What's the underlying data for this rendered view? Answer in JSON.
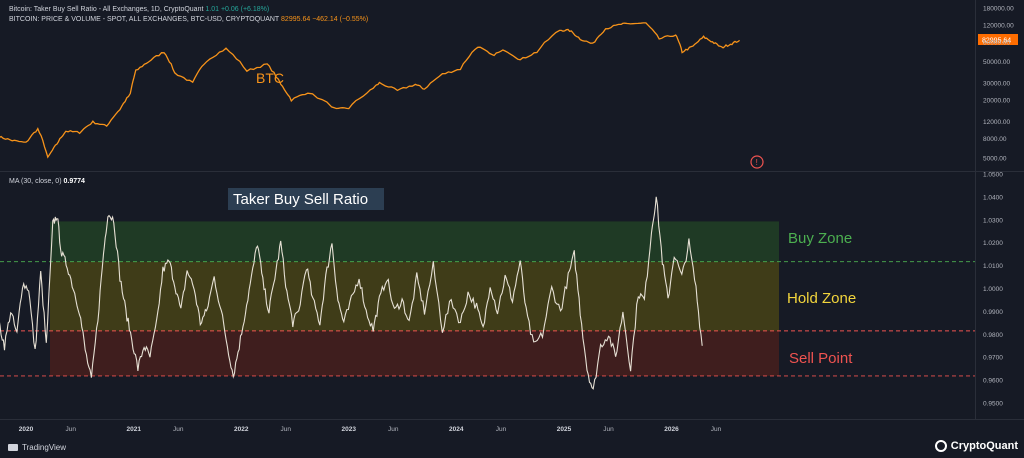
{
  "legend": {
    "line1_label": "Bitcoin: Taker Buy Sell Ratio - All Exchanges, 1D, CryptoQuant",
    "line1_value": "1.01",
    "line1_change": "+0.06 (+6.18%)",
    "line2_label": "BITCOIN: PRICE & VOLUME - SPOT, ALL EXCHANGES, BTC-USD, CRYPTOQUANT",
    "line2_value": "82995.64",
    "line2_change": "−462.14 (−0.55%)",
    "ma_label": "MA (30, close, 0)",
    "ma_value": "0.9774"
  },
  "branding": {
    "left": "TradingView",
    "right": "CryptoQuant"
  },
  "colors": {
    "background": "#161a25",
    "price_line": "#f7931a",
    "ratio_line": "#e6e0d4",
    "buy_zone": "#1f3a25",
    "hold_zone": "#3f3c18",
    "sell_zone": "#3f1e1e",
    "buy_text": "#4caf50",
    "hold_text": "#f2d53c",
    "sell_text": "#ef5350",
    "badge": "#ff6d00"
  },
  "chart_data": [
    {
      "type": "line",
      "series_label": "BTC",
      "price_badge": "82995.64",
      "yscale": "log",
      "ylim": [
        4000,
        180000
      ],
      "yticks": [
        "180000.00",
        "120000.00",
        "80000.00",
        "50000.00",
        "30000.00",
        "20000.00",
        "12000.00",
        "8000.00",
        "5000.00"
      ],
      "ytick_values": [
        180000,
        120000,
        80000,
        50000,
        30000,
        20000,
        12000,
        8000,
        5000
      ],
      "series": [
        {
          "name": "BTC",
          "points": [
            [
              "2019-10-01",
              8300
            ],
            [
              "2019-11-15",
              7600
            ],
            [
              "2020-01-01",
              7200
            ],
            [
              "2020-02-10",
              10000
            ],
            [
              "2020-03-15",
              5000
            ],
            [
              "2020-04-15",
              7000
            ],
            [
              "2020-05-15",
              9500
            ],
            [
              "2020-07-01",
              9200
            ],
            [
              "2020-08-15",
              11800
            ],
            [
              "2020-10-01",
              10700
            ],
            [
              "2020-11-15",
              16000
            ],
            [
              "2020-12-20",
              23000
            ],
            [
              "2021-01-08",
              40000
            ],
            [
              "2021-02-20",
              50000
            ],
            [
              "2021-04-14",
              63000
            ],
            [
              "2021-05-20",
              38000
            ],
            [
              "2021-07-20",
              30000
            ],
            [
              "2021-09-05",
              51000
            ],
            [
              "2021-11-10",
              68000
            ],
            [
              "2022-01-20",
              40000
            ],
            [
              "2022-03-30",
              47000
            ],
            [
              "2022-05-15",
              29000
            ],
            [
              "2022-06-20",
              20000
            ],
            [
              "2022-08-15",
              24000
            ],
            [
              "2022-11-20",
              16000
            ],
            [
              "2023-01-01",
              16500
            ],
            [
              "2023-03-15",
              25000
            ],
            [
              "2023-04-15",
              30000
            ],
            [
              "2023-06-15",
              25000
            ],
            [
              "2023-08-15",
              29000
            ],
            [
              "2023-09-15",
              26000
            ],
            [
              "2023-11-15",
              37000
            ],
            [
              "2024-01-15",
              42000
            ],
            [
              "2024-03-14",
              72000
            ],
            [
              "2024-05-01",
              58000
            ],
            [
              "2024-06-15",
              66000
            ],
            [
              "2024-08-05",
              52000
            ],
            [
              "2024-10-01",
              63000
            ],
            [
              "2024-12-17",
              106000
            ],
            [
              "2025-01-20",
              105000
            ],
            [
              "2025-02-25",
              86000
            ],
            [
              "2025-04-08",
              76000
            ],
            [
              "2025-05-22",
              110000
            ],
            [
              "2025-07-14",
              122000
            ],
            [
              "2025-08-14",
              124000
            ],
            [
              "2025-10-06",
              125000
            ],
            [
              "2025-11-20",
              86000
            ],
            [
              "2026-01-15",
              95000
            ],
            [
              "2026-02-06",
              63000
            ],
            [
              "2026-03-15",
              72000
            ],
            [
              "2026-04-20",
              90000
            ],
            [
              "2026-05-20",
              80000
            ],
            [
              "2026-06-20",
              70000
            ],
            [
              "2026-07-20",
              76000
            ],
            [
              "2026-08-20",
              83000
            ]
          ]
        }
      ]
    },
    {
      "type": "line",
      "title": "Taker Buy Sell Ratio",
      "ylim": [
        0.944,
        1.05
      ],
      "yticks": [
        "1.0500",
        "1.0400",
        "1.0300",
        "1.0200",
        "1.0100",
        "1.0000",
        "0.9900",
        "0.9800",
        "0.9700",
        "0.9600",
        "0.9500"
      ],
      "ytick_values": [
        1.05,
        1.04,
        1.03,
        1.02,
        1.01,
        1.0,
        0.99,
        0.98,
        0.97,
        0.96,
        0.95
      ],
      "zones": [
        {
          "name": "Buy Zone",
          "from": 1.0117,
          "to": 1.0293
        },
        {
          "name": "Hold Zone",
          "from": 0.9815,
          "to": 1.0117
        },
        {
          "name": "Sell Point",
          "from": 0.9618,
          "to": 0.9815
        }
      ],
      "reference_lines": [
        1.0117,
        0.9815,
        0.9618
      ],
      "x_labels": [
        "2020",
        "Jun",
        "2021",
        "Jun",
        "2022",
        "Jun",
        "2023",
        "Jun",
        "2024",
        "Jun",
        "2025",
        "Jun",
        "2026",
        "Jun"
      ],
      "x_label_dates": [
        "2020-01-01",
        "2020-06-01",
        "2021-01-01",
        "2021-06-01",
        "2022-01-01",
        "2022-06-01",
        "2023-01-01",
        "2023-06-01",
        "2024-01-01",
        "2024-06-01",
        "2025-01-01",
        "2025-06-01",
        "2026-01-01",
        "2026-06-01"
      ],
      "series": [
        {
          "name": "MA (30, close, 0)",
          "points": [
            [
              "2019-10-01",
              0.985
            ],
            [
              "2019-10-20",
              0.975
            ],
            [
              "2019-11-10",
              0.99
            ],
            [
              "2019-12-01",
              0.98
            ],
            [
              "2019-12-20",
              1.002
            ],
            [
              "2020-01-10",
              1.0
            ],
            [
              "2020-02-01",
              0.972
            ],
            [
              "2020-02-20",
              1.007
            ],
            [
              "2020-03-10",
              0.975
            ],
            [
              "2020-04-01",
              1.028
            ],
            [
              "2020-04-15",
              1.032
            ],
            [
              "2020-05-01",
              1.015
            ],
            [
              "2020-05-20",
              1.01
            ],
            [
              "2020-06-10",
              1.0
            ],
            [
              "2020-07-01",
              0.99
            ],
            [
              "2020-07-20",
              0.973
            ],
            [
              "2020-08-10",
              0.96
            ],
            [
              "2020-09-01",
              0.987
            ],
            [
              "2020-09-20",
              1.015
            ],
            [
              "2020-10-05",
              1.033
            ],
            [
              "2020-10-25",
              1.03
            ],
            [
              "2020-11-15",
              1.005
            ],
            [
              "2020-12-05",
              0.99
            ],
            [
              "2020-12-25",
              0.978
            ],
            [
              "2021-01-15",
              0.965
            ],
            [
              "2021-02-05",
              0.975
            ],
            [
              "2021-02-25",
              0.97
            ],
            [
              "2021-03-20",
              0.985
            ],
            [
              "2021-04-10",
              1.008
            ],
            [
              "2021-05-01",
              1.012
            ],
            [
              "2021-05-20",
              1.002
            ],
            [
              "2021-06-10",
              0.99
            ],
            [
              "2021-07-01",
              1.008
            ],
            [
              "2021-07-25",
              1.0
            ],
            [
              "2021-08-15",
              0.985
            ],
            [
              "2021-09-05",
              0.99
            ],
            [
              "2021-10-01",
              1.005
            ],
            [
              "2021-10-25",
              0.99
            ],
            [
              "2021-11-15",
              0.975
            ],
            [
              "2021-12-05",
              0.962
            ],
            [
              "2021-12-25",
              0.975
            ],
            [
              "2022-01-15",
              0.99
            ],
            [
              "2022-02-05",
              1.005
            ],
            [
              "2022-02-25",
              1.02
            ],
            [
              "2022-03-15",
              1.003
            ],
            [
              "2022-04-05",
              0.99
            ],
            [
              "2022-04-25",
              1.005
            ],
            [
              "2022-05-15",
              1.02
            ],
            [
              "2022-06-05",
              0.998
            ],
            [
              "2022-06-25",
              0.985
            ],
            [
              "2022-07-15",
              0.99
            ],
            [
              "2022-08-10",
              1.01
            ],
            [
              "2022-09-01",
              0.995
            ],
            [
              "2022-09-25",
              0.985
            ],
            [
              "2022-10-15",
              1.005
            ],
            [
              "2022-11-05",
              1.02
            ],
            [
              "2022-11-25",
              0.995
            ],
            [
              "2022-12-15",
              0.985
            ],
            [
              "2023-01-10",
              0.995
            ],
            [
              "2023-02-05",
              1.005
            ],
            [
              "2023-03-01",
              0.99
            ],
            [
              "2023-03-25",
              0.982
            ],
            [
              "2023-04-15",
              0.995
            ],
            [
              "2023-05-10",
              1.005
            ],
            [
              "2023-06-05",
              0.99
            ],
            [
              "2023-07-01",
              0.995
            ],
            [
              "2023-07-25",
              0.985
            ],
            [
              "2023-08-20",
              1.005
            ],
            [
              "2023-09-15",
              0.99
            ],
            [
              "2023-10-15",
              1.01
            ],
            [
              "2023-11-15",
              0.982
            ],
            [
              "2023-12-15",
              0.995
            ],
            [
              "2024-01-15",
              0.985
            ],
            [
              "2024-02-10",
              0.998
            ],
            [
              "2024-03-10",
              0.992
            ],
            [
              "2024-04-01",
              0.982
            ],
            [
              "2024-04-25",
              1.002
            ],
            [
              "2024-05-20",
              0.99
            ],
            [
              "2024-06-15",
              1.005
            ],
            [
              "2024-07-10",
              0.995
            ],
            [
              "2024-08-05",
              1.012
            ],
            [
              "2024-08-25",
              0.99
            ],
            [
              "2024-09-20",
              0.975
            ],
            [
              "2024-10-20",
              0.98
            ],
            [
              "2024-11-20",
              1.0
            ],
            [
              "2024-12-20",
              0.99
            ],
            [
              "2025-01-15",
              1.005
            ],
            [
              "2025-02-05",
              1.015
            ],
            [
              "2025-02-25",
              0.99
            ],
            [
              "2025-03-20",
              0.965
            ],
            [
              "2025-04-10",
              0.955
            ],
            [
              "2025-05-05",
              0.975
            ],
            [
              "2025-06-01",
              0.98
            ],
            [
              "2025-06-25",
              0.97
            ],
            [
              "2025-07-20",
              0.99
            ],
            [
              "2025-08-15",
              0.965
            ],
            [
              "2025-09-10",
              0.998
            ],
            [
              "2025-10-01",
              0.995
            ],
            [
              "2025-10-25",
              1.025
            ],
            [
              "2025-11-10",
              1.04
            ],
            [
              "2025-12-01",
              1.012
            ],
            [
              "2025-12-20",
              0.995
            ],
            [
              "2026-01-10",
              1.015
            ],
            [
              "2026-02-05",
              1.005
            ],
            [
              "2026-03-01",
              1.02
            ],
            [
              "2026-03-25",
              1.0
            ],
            [
              "2026-04-15",
              0.975
            ]
          ]
        }
      ]
    }
  ]
}
